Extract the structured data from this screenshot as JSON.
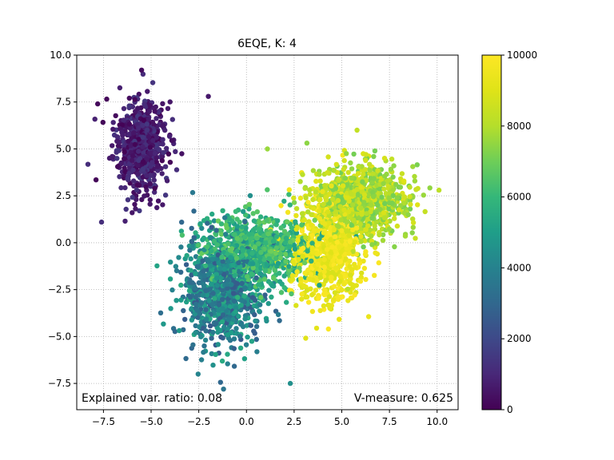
{
  "chart_data": {
    "type": "scatter",
    "title": "6EQE, K: 4",
    "xlabel": "",
    "ylabel": "",
    "xlim": [
      -8.9,
      11.1
    ],
    "ylim": [
      -8.9,
      10.0
    ],
    "xticks": [
      -7.5,
      -5.0,
      -2.5,
      0.0,
      2.5,
      5.0,
      7.5,
      10.0
    ],
    "xtick_labels": [
      "−7.5",
      "−5.0",
      "−2.5",
      "0.0",
      "2.5",
      "5.0",
      "7.5",
      "10.0"
    ],
    "yticks": [
      -7.5,
      -5.0,
      -2.5,
      0.0,
      2.5,
      5.0,
      7.5,
      10.0
    ],
    "ytick_labels": [
      "−7.5",
      "−5.0",
      "−2.5",
      "0.0",
      "2.5",
      "5.0",
      "7.5",
      "10.0"
    ],
    "grid": true,
    "grid_style": "dotted",
    "colormap": "viridis",
    "color_range": [
      0,
      10000
    ],
    "colorbar_ticks": [
      0,
      2000,
      4000,
      6000,
      8000,
      10000
    ],
    "colorbar_tick_labels": [
      "0",
      "2000",
      "4000",
      "6000",
      "8000",
      "10000"
    ],
    "annotations": {
      "explained_variance": "Explained var. ratio: 0.08",
      "v_measure": "V-measure: 0.625"
    },
    "clusters": [
      {
        "center": [
          -5.6,
          5.2
        ],
        "spread": [
          0.9,
          1.6
        ],
        "color_value_range": [
          0,
          1500
        ]
      },
      {
        "center": [
          -1.2,
          -2.6
        ],
        "spread": [
          1.4,
          2.0
        ],
        "color_value_range": [
          2500,
          5500
        ]
      },
      {
        "center": [
          0.6,
          -0.4
        ],
        "spread": [
          1.8,
          1.2
        ],
        "color_value_range": [
          5000,
          7000
        ]
      },
      {
        "center": [
          6.0,
          2.2
        ],
        "spread": [
          1.6,
          1.3
        ],
        "color_value_range": [
          7000,
          9000
        ]
      },
      {
        "center": [
          4.2,
          -0.5
        ],
        "spread": [
          1.3,
          1.8
        ],
        "color_value_range": [
          8800,
          10000
        ]
      }
    ],
    "sample_points": [
      {
        "x": -5.5,
        "y": 9.2,
        "c": 300
      },
      {
        "x": -7.8,
        "y": 7.4,
        "c": 200
      },
      {
        "x": -2.0,
        "y": 7.8,
        "c": 600
      },
      {
        "x": -7.6,
        "y": 1.1,
        "c": 1200
      },
      {
        "x": -1.2,
        "y": -7.8,
        "c": 3500
      },
      {
        "x": 2.3,
        "y": -7.5,
        "c": 4500
      },
      {
        "x": 10.1,
        "y": 2.8,
        "c": 8200
      },
      {
        "x": 5.8,
        "y": 6.0,
        "c": 8300
      },
      {
        "x": 1.1,
        "y": 5.0,
        "c": 7600
      },
      {
        "x": 4.3,
        "y": -4.6,
        "c": 9900
      }
    ]
  }
}
